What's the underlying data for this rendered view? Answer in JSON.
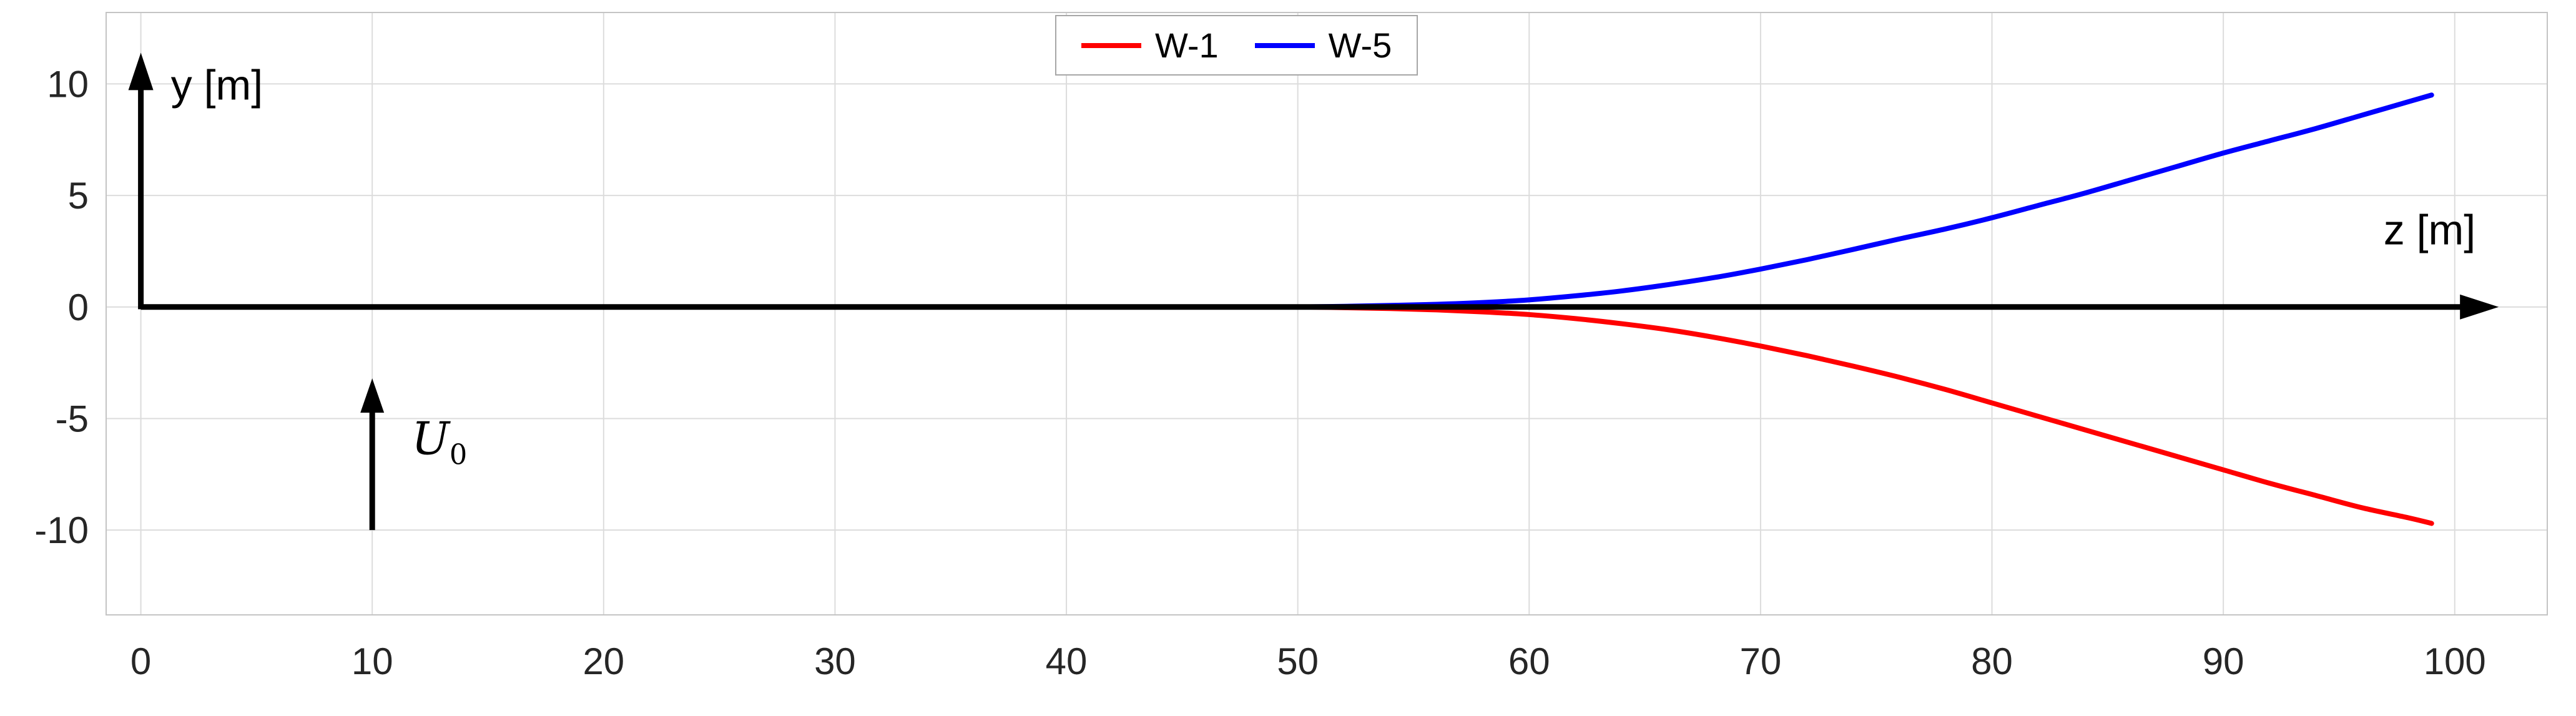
{
  "chart_data": {
    "type": "line",
    "title": "",
    "xlabel": "z [m]",
    "ylabel": "y [m]",
    "xlim": [
      -1.5,
      104
    ],
    "ylim": [
      -13.8,
      13.2
    ],
    "x_ticks": [
      0,
      10,
      20,
      30,
      40,
      50,
      60,
      70,
      80,
      90,
      100
    ],
    "y_ticks": [
      -10,
      -5,
      0,
      5,
      10
    ],
    "grid": true,
    "grid_color": "#dcdcdc",
    "box_color": "#c4c4c4",
    "tick_label_color": "#262626",
    "axis_color": "#000000",
    "legend_position": "top-center",
    "series": [
      {
        "name": "W-1",
        "color": "#ff0000",
        "width": 8,
        "points": [
          [
            50,
            0
          ],
          [
            52,
            -0.03
          ],
          [
            54,
            -0.07
          ],
          [
            56,
            -0.13
          ],
          [
            58,
            -0.22
          ],
          [
            60,
            -0.34
          ],
          [
            62,
            -0.52
          ],
          [
            64,
            -0.75
          ],
          [
            66,
            -1.02
          ],
          [
            68,
            -1.36
          ],
          [
            70,
            -1.75
          ],
          [
            72,
            -2.18
          ],
          [
            74,
            -2.65
          ],
          [
            76,
            -3.15
          ],
          [
            78,
            -3.7
          ],
          [
            80,
            -4.3
          ],
          [
            82,
            -4.9
          ],
          [
            84,
            -5.5
          ],
          [
            86,
            -6.1
          ],
          [
            88,
            -6.7
          ],
          [
            90,
            -7.3
          ],
          [
            92,
            -7.9
          ],
          [
            94,
            -8.45
          ],
          [
            96,
            -9.0
          ],
          [
            98,
            -9.45
          ],
          [
            99,
            -9.7
          ]
        ]
      },
      {
        "name": "W-5",
        "color": "#0000ff",
        "width": 8,
        "points": [
          [
            50,
            0
          ],
          [
            52,
            0.03
          ],
          [
            54,
            0.07
          ],
          [
            56,
            0.12
          ],
          [
            58,
            0.2
          ],
          [
            60,
            0.32
          ],
          [
            62,
            0.5
          ],
          [
            64,
            0.72
          ],
          [
            66,
            1.0
          ],
          [
            68,
            1.32
          ],
          [
            70,
            1.7
          ],
          [
            72,
            2.12
          ],
          [
            74,
            2.58
          ],
          [
            76,
            3.05
          ],
          [
            78,
            3.5
          ],
          [
            80,
            4.0
          ],
          [
            82,
            4.55
          ],
          [
            84,
            5.1
          ],
          [
            86,
            5.7
          ],
          [
            88,
            6.3
          ],
          [
            90,
            6.9
          ],
          [
            92,
            7.45
          ],
          [
            94,
            8.0
          ],
          [
            96,
            8.6
          ],
          [
            98,
            9.2
          ],
          [
            99,
            9.5
          ]
        ]
      }
    ],
    "annotations": [
      {
        "type": "arrow",
        "name": "y-axis-arrow",
        "from": [
          0,
          -0.1
        ],
        "to": [
          0,
          11.4
        ],
        "color": "#000000",
        "width": 9,
        "head_len": 60,
        "head_w": 40
      },
      {
        "type": "arrow",
        "name": "z-axis-arrow",
        "from": [
          0,
          0
        ],
        "to": [
          101.9,
          0
        ],
        "color": "#000000",
        "width": 9,
        "head_len": 62,
        "head_w": 40
      },
      {
        "type": "arrow",
        "name": "u0-arrow",
        "from": [
          10,
          -10
        ],
        "to": [
          10,
          -3.2
        ],
        "color": "#000000",
        "width": 9,
        "head_len": 55,
        "head_w": 38
      },
      {
        "type": "text",
        "name": "y-axis-label",
        "text": "y [m]",
        "at": [
          1.3,
          9.3
        ],
        "anchor": "start",
        "size": 68
      },
      {
        "type": "text",
        "name": "z-axis-label",
        "text": "z [m]",
        "at": [
          100.9,
          2.8
        ],
        "anchor": "end",
        "size": 68
      },
      {
        "type": "math-text",
        "name": "u0-label",
        "text": "U",
        "sub": "0",
        "at": [
          11.7,
          -6.6
        ],
        "anchor": "start",
        "size": 72
      }
    ]
  }
}
